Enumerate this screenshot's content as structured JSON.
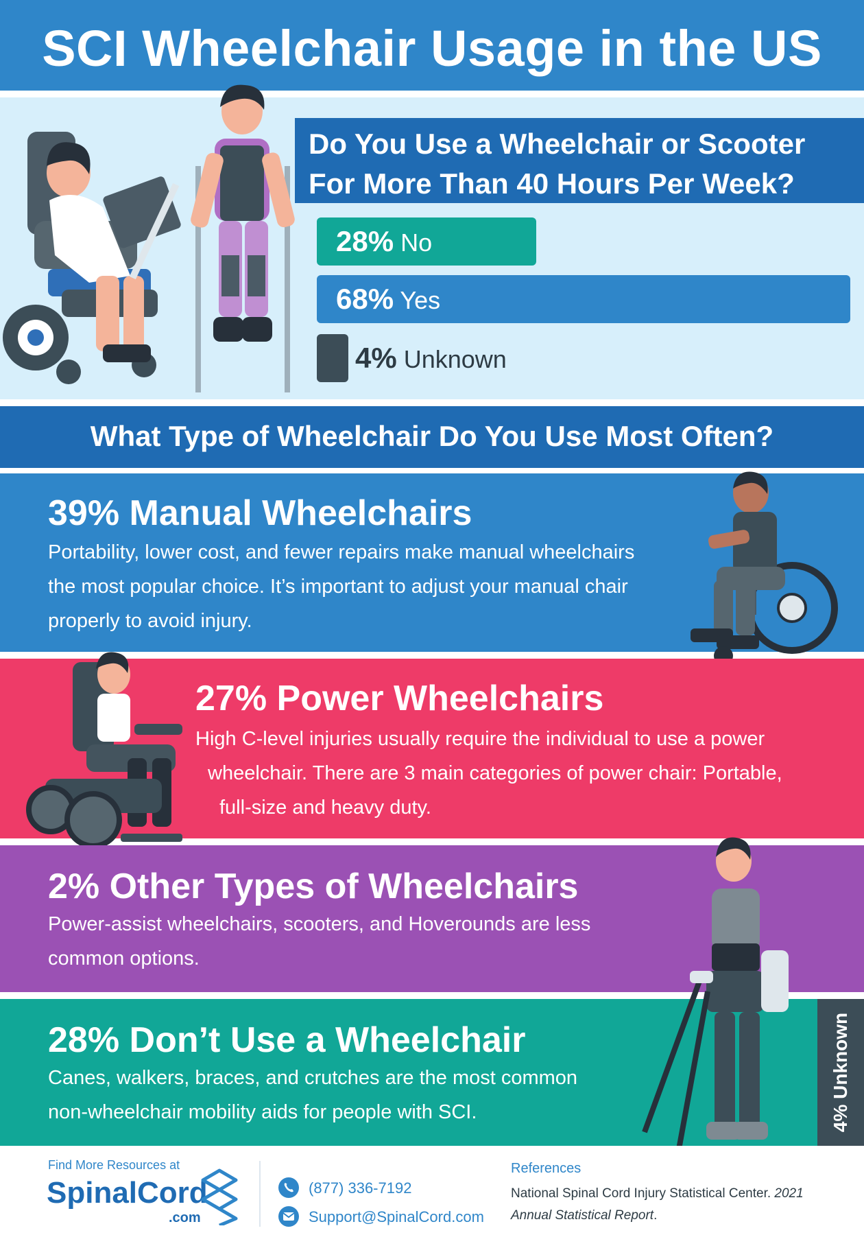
{
  "title": "SCI Wheelchair Usage in the US",
  "question1": {
    "line1": "Do You Use a Wheelchair or Scooter",
    "line2": "For More Than 40 Hours Per Week?"
  },
  "responses": [
    {
      "percent": "28%",
      "label": "No",
      "value": 28,
      "color": "#11a797"
    },
    {
      "percent": "68%",
      "label": "Yes",
      "value": 68,
      "color": "#2f86c9"
    },
    {
      "percent": "4%",
      "label": "Unknown",
      "value": 4,
      "color": "#3c4d57"
    }
  ],
  "question2": "What Type of Wheelchair Do You Use Most Often?",
  "categories": {
    "manual": {
      "heading": "39% Manual Wheelchairs",
      "line1": "Portability, lower cost, and fewer repairs make manual wheelchairs",
      "line2": "the most popular choice. It’s important to adjust your manual chair",
      "line3": "properly to avoid injury.",
      "color": "#2f86c9"
    },
    "power": {
      "heading": "27% Power Wheelchairs",
      "line1": "High C-level injuries usually require the individual to use a power",
      "line2": "wheelchair. There are 3 main categories of power chair: Portable,",
      "line3": "full-size and heavy duty.",
      "color": "#ee3b68"
    },
    "other": {
      "heading": "2% Other Types of Wheelchairs",
      "line1": "Power-assist wheelchairs, scooters, and Hoverounds are less",
      "line2": "common options.",
      "color": "#9b51b4"
    },
    "none": {
      "heading": "28% Don’t Use a Wheelchair",
      "line1": "Canes, walkers, braces, and crutches are the most common",
      "line2": "non-wheelchair mobility aids for people with SCI.",
      "color": "#11a797"
    }
  },
  "unknown_side_label": "4% Unknown",
  "footer": {
    "find_more": "Find More Resources at",
    "logo_main": "SpinalCord",
    "logo_suffix": ".com",
    "phone": "(877) 336-7192",
    "email": "Support@SpinalCord.com",
    "references_title": "References",
    "reference_text": "National Spinal Cord Injury Statistical Center.",
    "reference_italic_1": "2021",
    "reference_italic_2": "Annual Statistical Report",
    "reference_end": "."
  },
  "icons": [
    "phone-icon",
    "email-icon",
    "spinalcord-logo-mark"
  ]
}
